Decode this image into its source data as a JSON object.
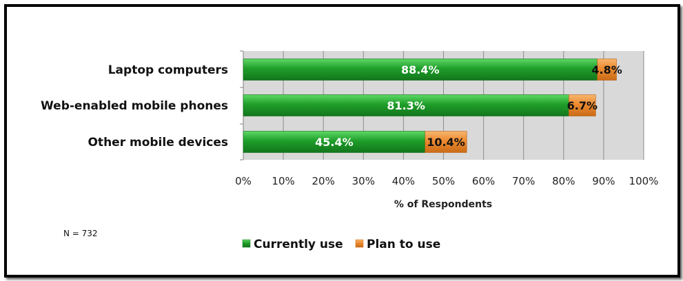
{
  "chart_data": {
    "type": "bar",
    "orientation": "horizontal",
    "stacked": true,
    "categories": [
      "Laptop computers",
      "Web-enabled mobile phones",
      "Other mobile devices"
    ],
    "series": [
      {
        "name": "Currently use",
        "values": [
          88.4,
          81.3,
          45.4
        ],
        "labels": [
          "88.4%",
          "81.3%",
          "45.4%"
        ],
        "color": "#1f9e2a"
      },
      {
        "name": "Plan to use",
        "values": [
          4.8,
          6.7,
          10.4
        ],
        "labels": [
          "4.8%",
          "6.7%",
          "10.4%"
        ],
        "color": "#ed8a2f"
      }
    ],
    "xlabel": "% of Respondents",
    "xlim": [
      0,
      100
    ],
    "xticks": [
      "0%",
      "10%",
      "20%",
      "30%",
      "40%",
      "50%",
      "60%",
      "70%",
      "80%",
      "90%",
      "100%"
    ],
    "grid": true,
    "plot_background": "#d9d9d9",
    "legend_position": "bottom",
    "note": "N = 732"
  }
}
